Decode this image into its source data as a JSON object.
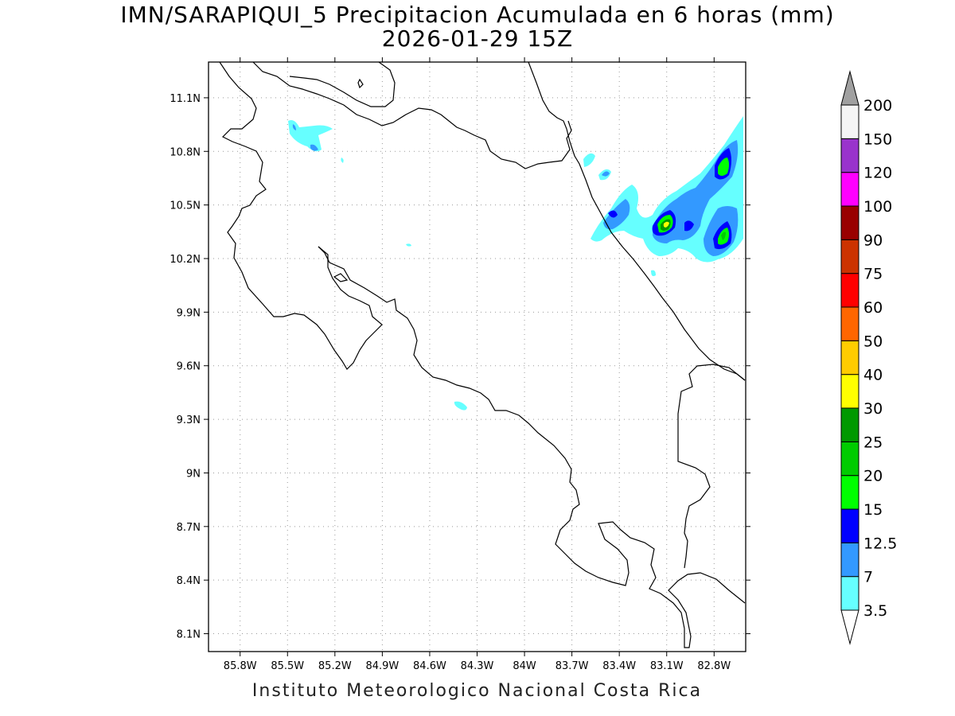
{
  "title_line1": "IMN/SARAPIQUI_5 Precipitacion Acumulada en 6 horas (mm)",
  "title_line2": "2026-01-29 15Z",
  "footer": "Instituto Meteorologico Nacional Costa Rica",
  "map": {
    "lon_range": [
      -86.0,
      -82.6
    ],
    "lat_range": [
      8.0,
      11.3
    ],
    "lon_ticks": [
      {
        "value": -85.8,
        "label": "85.8W"
      },
      {
        "value": -85.5,
        "label": "85.5W"
      },
      {
        "value": -85.2,
        "label": "85.2W"
      },
      {
        "value": -84.9,
        "label": "84.9W"
      },
      {
        "value": -84.6,
        "label": "84.6W"
      },
      {
        "value": -84.3,
        "label": "84.3W"
      },
      {
        "value": -84.0,
        "label": "84W"
      },
      {
        "value": -83.7,
        "label": "83.7W"
      },
      {
        "value": -83.4,
        "label": "83.4W"
      },
      {
        "value": -83.1,
        "label": "83.1W"
      },
      {
        "value": -82.8,
        "label": "82.8W"
      }
    ],
    "lat_ticks": [
      {
        "value": 8.1,
        "label": "8.1N"
      },
      {
        "value": 8.4,
        "label": "8.4N"
      },
      {
        "value": 8.7,
        "label": "8.7N"
      },
      {
        "value": 9.0,
        "label": "9N"
      },
      {
        "value": 9.3,
        "label": "9.3N"
      },
      {
        "value": 9.6,
        "label": "9.6N"
      },
      {
        "value": 9.9,
        "label": "9.9N"
      },
      {
        "value": 10.2,
        "label": "10.2N"
      },
      {
        "value": 10.5,
        "label": "10.5N"
      },
      {
        "value": 10.8,
        "label": "10.8N"
      },
      {
        "value": 11.1,
        "label": "11.1N"
      }
    ],
    "grid": true
  },
  "colorbar": {
    "levels": [
      "3.5",
      "7",
      "12.5",
      "15",
      "20",
      "25",
      "30",
      "40",
      "50",
      "60",
      "75",
      "90",
      "100",
      "120",
      "150",
      "200"
    ],
    "colors": [
      "#66ffff",
      "#3399ff",
      "#0000ff",
      "#00ff00",
      "#00cc00",
      "#009900",
      "#ffff00",
      "#ffcc00",
      "#ff6600",
      "#ff0000",
      "#cc3300",
      "#990000",
      "#ff00ff",
      "#9933cc",
      "#f5f5f5",
      "#a0a0a0"
    ]
  }
}
